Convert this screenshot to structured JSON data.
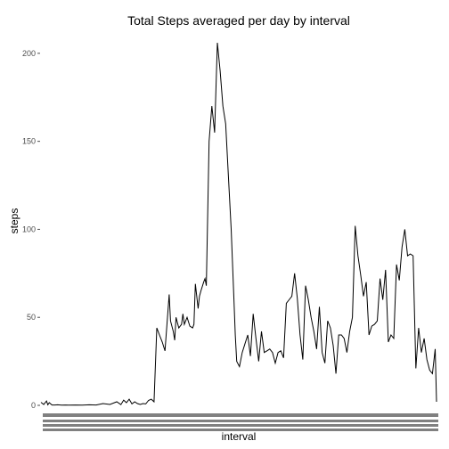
{
  "chart_data": {
    "type": "line",
    "title": "Total Steps averaged per day by interval",
    "xlabel": "interval",
    "ylabel": "steps",
    "ylim": [
      0,
      206
    ],
    "yticks": [
      0,
      50,
      100,
      150,
      200
    ],
    "xticks_note": "288 overlapping interval tick labels (unreadable)",
    "grid": false,
    "series": [
      {
        "x": [
          0,
          2,
          4,
          5,
          6,
          8,
          10,
          12,
          15,
          18,
          20,
          25,
          30,
          35,
          40,
          45,
          50,
          55,
          58,
          60,
          62,
          64,
          66,
          68,
          70,
          72,
          74,
          76,
          78,
          80,
          82,
          84,
          86,
          88,
          90,
          93,
          94,
          96,
          97,
          98,
          100,
          102,
          103,
          104,
          106,
          108,
          110,
          111,
          112,
          114,
          115,
          116,
          118,
          119,
          120,
          122,
          124,
          126,
          128,
          130,
          132,
          134,
          136,
          138,
          140,
          141,
          142,
          144,
          146,
          148,
          150,
          152,
          154,
          156,
          158,
          160,
          162,
          164,
          166,
          168,
          170,
          172,
          174,
          176,
          178,
          180,
          182,
          184,
          186,
          188,
          190,
          192,
          194,
          196,
          198,
          200,
          202,
          204,
          206,
          208,
          210,
          212,
          214,
          216,
          218,
          220,
          222,
          224,
          226,
          228,
          230,
          232,
          234,
          236,
          238,
          240,
          242,
          244,
          246,
          248,
          250,
          252,
          254,
          256,
          258,
          260,
          262,
          264,
          266,
          268,
          270,
          272,
          274,
          276,
          278,
          280,
          282,
          284,
          286,
          287
        ],
        "y": [
          1.7,
          0.5,
          2.5,
          0.3,
          1.5,
          0.2,
          0.2,
          0.3,
          0.1,
          0.2,
          0.1,
          0.2,
          0.1,
          0.3,
          0.2,
          1.0,
          0.5,
          2.0,
          0.4,
          3.0,
          1.5,
          3.5,
          0.8,
          2.0,
          1.0,
          0.5,
          1.0,
          0.8,
          2.8,
          3.5,
          2.0,
          44.0,
          40.0,
          36.0,
          31.0,
          63.0,
          48.0,
          42.0,
          37.0,
          50.0,
          44.0,
          46.0,
          52.0,
          46.0,
          50.0,
          45.0,
          44.0,
          46.0,
          69.0,
          55.0,
          62.0,
          65.0,
          70.0,
          72.0,
          68.0,
          150.0,
          170.0,
          155.0,
          206.0,
          190.0,
          170.0,
          160.0,
          130.0,
          100.0,
          60.0,
          40.0,
          25.0,
          22.0,
          30.0,
          35.0,
          40.0,
          28.0,
          52.0,
          38.0,
          25.0,
          42.0,
          30.0,
          31.0,
          32.0,
          30.0,
          24.0,
          30.0,
          31.0,
          27.0,
          58.0,
          60.0,
          62.0,
          75.0,
          61.0,
          40.0,
          26.0,
          68.0,
          60.0,
          50.0,
          42.0,
          32.0,
          56.0,
          30.0,
          24.0,
          48.0,
          44.0,
          34.0,
          18.0,
          40.0,
          40.0,
          38.0,
          30.0,
          42.0,
          50.0,
          102.0,
          85.0,
          74.0,
          62.0,
          70.0,
          40.0,
          45.0,
          46.0,
          48.0,
          72.0,
          60.0,
          77.0,
          36.0,
          40.0,
          38.0,
          80.0,
          71.0,
          90.0,
          100.0,
          85.0,
          86.0,
          85.0,
          21.0,
          44.0,
          30.0,
          38.0,
          26.0,
          20.0,
          18.0,
          32.0,
          2.0
        ]
      }
    ]
  }
}
